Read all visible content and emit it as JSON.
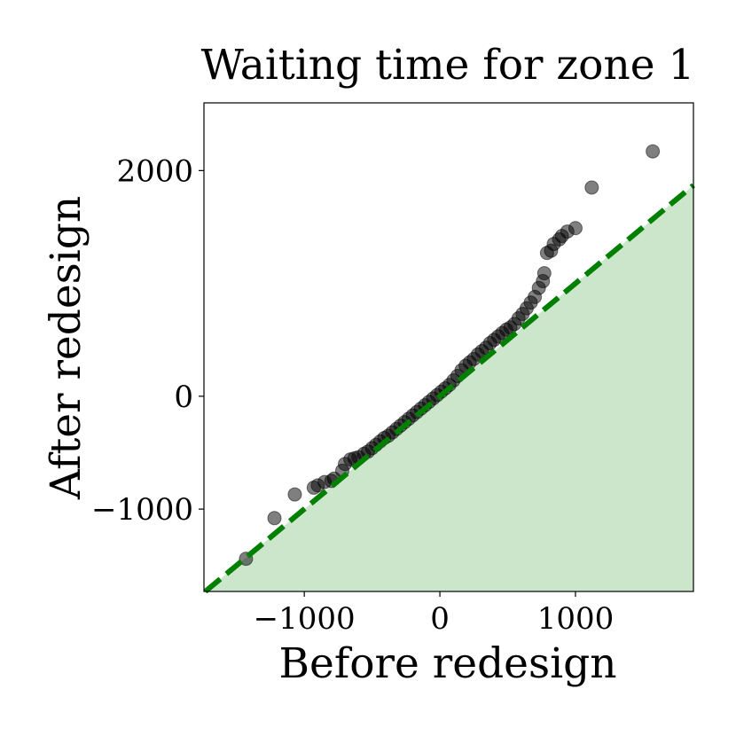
{
  "chart_data": {
    "type": "scatter",
    "title": "Waiting time for zone 1",
    "xlabel": "Before redesign",
    "ylabel": "After redesign",
    "xlim": [
      -1740,
      1870
    ],
    "ylim": [
      -1730,
      2600
    ],
    "x_ticks": [
      {
        "value": -1000,
        "label": "−1000"
      },
      {
        "value": 0,
        "label": "0"
      },
      {
        "value": 1000,
        "label": "1000"
      }
    ],
    "y_ticks": [
      {
        "value": -1000,
        "label": "−1000"
      },
      {
        "value": 0,
        "label": "0"
      },
      {
        "value": 2000,
        "label": "2000"
      }
    ],
    "reference_line": {
      "style": "dashed",
      "color": "#007f00",
      "relation": "y = x"
    },
    "shaded_region": {
      "relation": "y < x",
      "color": "#cce6cc"
    },
    "point_color": "#000000",
    "point_opacity": 0.5,
    "grid": false,
    "points": [
      [
        -1430,
        -1440
      ],
      [
        -1220,
        -1080
      ],
      [
        -1070,
        -870
      ],
      [
        -930,
        -810
      ],
      [
        -900,
        -790
      ],
      [
        -850,
        -760
      ],
      [
        -800,
        -750
      ],
      [
        -780,
        -730
      ],
      [
        -720,
        -660
      ],
      [
        -700,
        -600
      ],
      [
        -660,
        -560
      ],
      [
        -630,
        -550
      ],
      [
        -600,
        -540
      ],
      [
        -560,
        -510
      ],
      [
        -530,
        -490
      ],
      [
        -500,
        -460
      ],
      [
        -470,
        -430
      ],
      [
        -440,
        -400
      ],
      [
        -410,
        -370
      ],
      [
        -380,
        -350
      ],
      [
        -350,
        -320
      ],
      [
        -320,
        -290
      ],
      [
        -290,
        -260
      ],
      [
        -260,
        -230
      ],
      [
        -230,
        -200
      ],
      [
        -200,
        -170
      ],
      [
        -170,
        -140
      ],
      [
        -140,
        -110
      ],
      [
        -110,
        -80
      ],
      [
        -80,
        -50
      ],
      [
        -50,
        -20
      ],
      [
        -20,
        10
      ],
      [
        10,
        40
      ],
      [
        40,
        70
      ],
      [
        70,
        100
      ],
      [
        100,
        140
      ],
      [
        130,
        180
      ],
      [
        160,
        230
      ],
      [
        190,
        270
      ],
      [
        220,
        300
      ],
      [
        250,
        330
      ],
      [
        280,
        370
      ],
      [
        310,
        400
      ],
      [
        340,
        430
      ],
      [
        370,
        470
      ],
      [
        400,
        500
      ],
      [
        430,
        530
      ],
      [
        460,
        560
      ],
      [
        490,
        590
      ],
      [
        520,
        610
      ],
      [
        550,
        640
      ],
      [
        580,
        690
      ],
      [
        610,
        730
      ],
      [
        640,
        780
      ],
      [
        670,
        830
      ],
      [
        700,
        880
      ],
      [
        730,
        960
      ],
      [
        760,
        1020
      ],
      [
        770,
        1090
      ],
      [
        790,
        1270
      ],
      [
        820,
        1290
      ],
      [
        840,
        1350
      ],
      [
        880,
        1390
      ],
      [
        900,
        1420
      ],
      [
        940,
        1460
      ],
      [
        1000,
        1490
      ],
      [
        1120,
        1850
      ],
      [
        1570,
        2170
      ]
    ]
  }
}
